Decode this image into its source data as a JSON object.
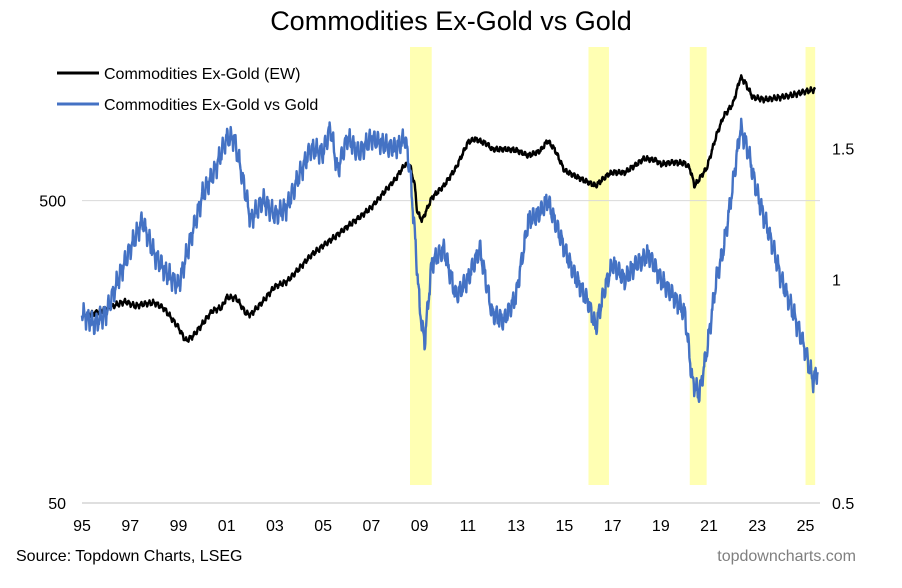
{
  "chart_data": {
    "type": "line",
    "title": "Commodities Ex-Gold vs Gold",
    "source": "Source: Topdown Charts, LSEG",
    "watermark": "topdowncharts.com",
    "x_tick_labels": [
      "95",
      "97",
      "99",
      "01",
      "03",
      "05",
      "07",
      "09",
      "11",
      "13",
      "15",
      "17",
      "19",
      "21",
      "23",
      "25"
    ],
    "x_tick_years": [
      1995,
      1997,
      1999,
      2001,
      2003,
      2005,
      2007,
      2009,
      2011,
      2013,
      2015,
      2017,
      2019,
      2021,
      2023,
      2025
    ],
    "xlim": [
      1995,
      2025.6
    ],
    "left_axis": {
      "scale": "log",
      "ylim": [
        50,
        1700
      ],
      "ticks": [
        500,
        50
      ],
      "tick_labels": [
        "500",
        "50"
      ]
    },
    "right_axis": {
      "scale": "log",
      "ylim": [
        0.5,
        2.1
      ],
      "ticks": [
        1.5,
        1,
        0.5
      ],
      "tick_labels": [
        "1.5",
        "1",
        "0.5"
      ]
    },
    "grid_values_left": [
      500
    ],
    "legend_position": "top-left",
    "highlight_color": "#ffff99",
    "highlight_periods": [
      [
        2008.6,
        2009.5
      ],
      [
        2016.0,
        2016.85
      ],
      [
        2020.2,
        2020.9
      ],
      [
        2025.0,
        2025.4
      ]
    ],
    "series": [
      {
        "name": "Commodities Ex-Gold (EW)",
        "axis": "left",
        "color": "#000000",
        "points": [
          [
            1995.0,
            208
          ],
          [
            1995.5,
            212
          ],
          [
            1996.0,
            220
          ],
          [
            1996.4,
            226
          ],
          [
            1996.8,
            232
          ],
          [
            1997.2,
            224
          ],
          [
            1997.6,
            228
          ],
          [
            1998.0,
            230
          ],
          [
            1998.4,
            220
          ],
          [
            1998.8,
            200
          ],
          [
            1999.0,
            190
          ],
          [
            1999.3,
            172
          ],
          [
            1999.6,
            178
          ],
          [
            2000.0,
            196
          ],
          [
            2000.4,
            216
          ],
          [
            2000.8,
            222
          ],
          [
            2001.0,
            240
          ],
          [
            2001.4,
            238
          ],
          [
            2001.8,
            212
          ],
          [
            2002.0,
            210
          ],
          [
            2002.5,
            232
          ],
          [
            2003.0,
            260
          ],
          [
            2003.5,
            270
          ],
          [
            2004.0,
            298
          ],
          [
            2004.5,
            330
          ],
          [
            2005.0,
            355
          ],
          [
            2005.5,
            380
          ],
          [
            2006.0,
            410
          ],
          [
            2006.5,
            440
          ],
          [
            2007.0,
            475
          ],
          [
            2007.5,
            530
          ],
          [
            2008.0,
            590
          ],
          [
            2008.4,
            660
          ],
          [
            2008.6,
            655
          ],
          [
            2008.8,
            560
          ],
          [
            2008.9,
            460
          ],
          [
            2009.1,
            430
          ],
          [
            2009.5,
            510
          ],
          [
            2010.0,
            560
          ],
          [
            2010.5,
            640
          ],
          [
            2011.0,
            780
          ],
          [
            2011.3,
            800
          ],
          [
            2011.8,
            770
          ],
          [
            2012.0,
            740
          ],
          [
            2012.5,
            740
          ],
          [
            2013.0,
            735
          ],
          [
            2013.5,
            705
          ],
          [
            2014.0,
            730
          ],
          [
            2014.3,
            790
          ],
          [
            2014.6,
            740
          ],
          [
            2015.0,
            630
          ],
          [
            2015.5,
            600
          ],
          [
            2016.0,
            575
          ],
          [
            2016.3,
            560
          ],
          [
            2016.8,
            610
          ],
          [
            2017.0,
            620
          ],
          [
            2017.5,
            620
          ],
          [
            2018.0,
            660
          ],
          [
            2018.3,
            690
          ],
          [
            2018.8,
            680
          ],
          [
            2019.0,
            660
          ],
          [
            2019.5,
            670
          ],
          [
            2020.0,
            665
          ],
          [
            2020.2,
            640
          ],
          [
            2020.4,
            560
          ],
          [
            2020.9,
            640
          ],
          [
            2021.3,
            820
          ],
          [
            2021.6,
            950
          ],
          [
            2022.0,
            1050
          ],
          [
            2022.3,
            1280
          ],
          [
            2022.5,
            1230
          ],
          [
            2022.8,
            1100
          ],
          [
            2023.3,
            1080
          ],
          [
            2024.0,
            1100
          ],
          [
            2024.5,
            1120
          ],
          [
            2025.0,
            1150
          ],
          [
            2025.4,
            1165
          ]
        ]
      },
      {
        "name": "Commodities Ex-Gold vs Gold",
        "axis": "right",
        "color": "#4472c4",
        "points": [
          [
            1995.0,
            0.9
          ],
          [
            1995.5,
            0.87
          ],
          [
            1996.0,
            0.9
          ],
          [
            1996.5,
            1.0
          ],
          [
            1997.0,
            1.1
          ],
          [
            1997.5,
            1.2
          ],
          [
            1998.0,
            1.08
          ],
          [
            1998.5,
            1.02
          ],
          [
            1999.0,
            0.98
          ],
          [
            1999.5,
            1.13
          ],
          [
            2000.0,
            1.3
          ],
          [
            2000.5,
            1.4
          ],
          [
            2001.0,
            1.55
          ],
          [
            2001.3,
            1.55
          ],
          [
            2001.6,
            1.4
          ],
          [
            2002.0,
            1.2
          ],
          [
            2002.5,
            1.28
          ],
          [
            2003.0,
            1.22
          ],
          [
            2003.5,
            1.25
          ],
          [
            2004.0,
            1.38
          ],
          [
            2004.5,
            1.5
          ],
          [
            2005.0,
            1.48
          ],
          [
            2005.3,
            1.6
          ],
          [
            2005.6,
            1.4
          ],
          [
            2006.0,
            1.55
          ],
          [
            2006.5,
            1.48
          ],
          [
            2007.0,
            1.55
          ],
          [
            2007.5,
            1.52
          ],
          [
            2008.0,
            1.5
          ],
          [
            2008.4,
            1.55
          ],
          [
            2008.6,
            1.4
          ],
          [
            2008.8,
            1.15
          ],
          [
            2009.0,
            0.92
          ],
          [
            2009.2,
            0.82
          ],
          [
            2009.5,
            1.05
          ],
          [
            2010.0,
            1.1
          ],
          [
            2010.5,
            0.95
          ],
          [
            2011.0,
            1.0
          ],
          [
            2011.5,
            1.1
          ],
          [
            2012.0,
            0.9
          ],
          [
            2012.5,
            0.88
          ],
          [
            2013.0,
            0.95
          ],
          [
            2013.5,
            1.2
          ],
          [
            2014.0,
            1.23
          ],
          [
            2014.3,
            1.28
          ],
          [
            2014.6,
            1.2
          ],
          [
            2015.0,
            1.1
          ],
          [
            2015.5,
            1.0
          ],
          [
            2016.0,
            0.93
          ],
          [
            2016.3,
            0.86
          ],
          [
            2016.7,
            0.98
          ],
          [
            2017.0,
            1.05
          ],
          [
            2017.5,
            1.0
          ],
          [
            2018.0,
            1.05
          ],
          [
            2018.5,
            1.08
          ],
          [
            2019.0,
            1.0
          ],
          [
            2019.5,
            0.95
          ],
          [
            2020.0,
            0.9
          ],
          [
            2020.3,
            0.73
          ],
          [
            2020.6,
            0.7
          ],
          [
            2020.9,
            0.8
          ],
          [
            2021.3,
            1.0
          ],
          [
            2021.6,
            1.1
          ],
          [
            2022.0,
            1.35
          ],
          [
            2022.3,
            1.6
          ],
          [
            2022.6,
            1.5
          ],
          [
            2023.0,
            1.3
          ],
          [
            2023.5,
            1.15
          ],
          [
            2024.0,
            1.0
          ],
          [
            2024.5,
            0.9
          ],
          [
            2025.0,
            0.8
          ],
          [
            2025.3,
            0.73
          ],
          [
            2025.5,
            0.75
          ]
        ]
      }
    ]
  }
}
